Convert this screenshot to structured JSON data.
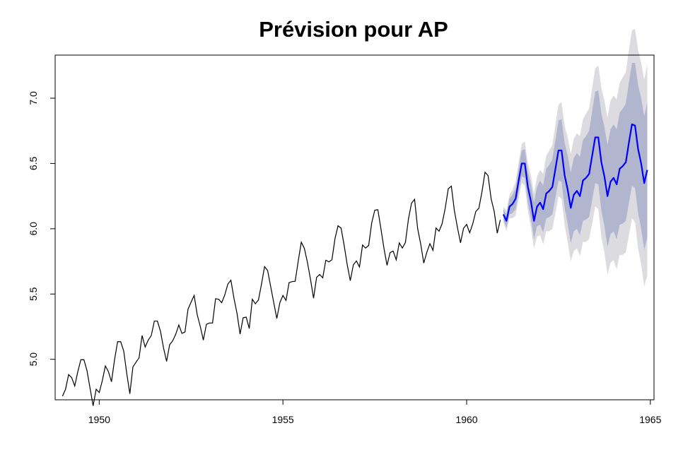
{
  "chart_data": {
    "type": "line",
    "title": "Prévision pour AP",
    "xlabel": "",
    "ylabel": "",
    "xlim": [
      1948.8,
      1965.1
    ],
    "ylim": [
      4.69,
      7.33
    ],
    "x_ticks": [
      1950,
      1955,
      1960,
      1965
    ],
    "x_tick_labels": [
      "1950",
      "1955",
      "1960",
      "1965"
    ],
    "y_ticks": [
      5.0,
      5.5,
      6.0,
      6.5,
      7.0
    ],
    "y_tick_labels": [
      "5.0",
      "5.5",
      "6.0",
      "6.5",
      "7.0"
    ],
    "grid": false,
    "legend": "none",
    "colors": {
      "history": "#000000",
      "forecast": "#0000ff",
      "band_80": "#b1b5ce",
      "band_95": "#dbdbe0"
    },
    "history": {
      "start": 1949.0,
      "frequency": 12,
      "values": [
        4.718,
        4.771,
        4.883,
        4.86,
        4.796,
        4.905,
        4.997,
        4.997,
        4.913,
        4.779,
        4.644,
        4.771,
        4.745,
        4.836,
        4.949,
        4.905,
        4.828,
        4.997,
        5.135,
        5.135,
        5.063,
        4.89,
        4.736,
        4.942,
        4.977,
        5.011,
        5.182,
        5.094,
        5.147,
        5.182,
        5.293,
        5.293,
        5.215,
        5.087,
        4.984,
        5.112,
        5.142,
        5.193,
        5.263,
        5.199,
        5.209,
        5.384,
        5.438,
        5.489,
        5.342,
        5.252,
        5.147,
        5.268,
        5.278,
        5.278,
        5.464,
        5.46,
        5.434,
        5.493,
        5.576,
        5.606,
        5.468,
        5.352,
        5.193,
        5.318,
        5.323,
        5.236,
        5.46,
        5.425,
        5.455,
        5.576,
        5.71,
        5.68,
        5.557,
        5.434,
        5.313,
        5.434,
        5.489,
        5.451,
        5.587,
        5.595,
        5.598,
        5.753,
        5.897,
        5.849,
        5.743,
        5.613,
        5.468,
        5.628,
        5.649,
        5.624,
        5.759,
        5.746,
        5.762,
        5.924,
        6.023,
        6.004,
        5.872,
        5.724,
        5.602,
        5.724,
        5.753,
        5.707,
        5.875,
        5.852,
        5.872,
        6.045,
        6.142,
        6.146,
        6.001,
        5.849,
        5.72,
        5.817,
        5.829,
        5.762,
        5.892,
        5.852,
        5.894,
        6.075,
        6.196,
        6.225,
        6.001,
        5.883,
        5.737,
        5.82,
        5.886,
        5.835,
        6.006,
        5.981,
        6.04,
        6.157,
        6.306,
        6.326,
        6.138,
        6.009,
        5.892,
        6.004,
        6.033,
        5.969,
        6.038,
        6.133,
        6.157,
        6.282,
        6.433,
        6.407,
        6.23,
        6.133,
        5.966,
        6.068
      ]
    },
    "forecast": {
      "start": 1961.0,
      "frequency": 12,
      "values": [
        6.11,
        6.06,
        6.17,
        6.19,
        6.23,
        6.37,
        6.5,
        6.5,
        6.32,
        6.21,
        6.06,
        6.17,
        6.2,
        6.15,
        6.27,
        6.29,
        6.32,
        6.46,
        6.6,
        6.6,
        6.41,
        6.3,
        6.16,
        6.26,
        6.29,
        6.25,
        6.37,
        6.39,
        6.42,
        6.56,
        6.7,
        6.7,
        6.51,
        6.4,
        6.25,
        6.36,
        6.39,
        6.34,
        6.46,
        6.48,
        6.51,
        6.66,
        6.8,
        6.79,
        6.61,
        6.5,
        6.35,
        6.45
      ],
      "lower_80": [
        6.07,
        6.01,
        6.11,
        6.12,
        6.15,
        6.28,
        6.4,
        6.39,
        6.2,
        6.08,
        5.92,
        6.02,
        6.03,
        5.97,
        6.08,
        6.09,
        6.11,
        6.24,
        6.37,
        6.36,
        6.16,
        6.04,
        5.89,
        5.98,
        6.0,
        5.95,
        6.06,
        6.07,
        6.09,
        6.22,
        6.35,
        6.34,
        6.14,
        6.02,
        5.86,
        5.96,
        5.98,
        5.92,
        6.03,
        6.04,
        6.06,
        6.2,
        6.33,
        6.31,
        6.12,
        6.0,
        5.84,
        5.93
      ],
      "upper_80": [
        6.15,
        6.11,
        6.23,
        6.26,
        6.31,
        6.46,
        6.6,
        6.61,
        6.44,
        6.34,
        6.2,
        6.32,
        6.37,
        6.33,
        6.46,
        6.49,
        6.53,
        6.68,
        6.83,
        6.84,
        6.66,
        6.56,
        6.43,
        6.54,
        6.58,
        6.55,
        6.68,
        6.71,
        6.75,
        6.9,
        7.05,
        7.06,
        6.88,
        6.78,
        6.64,
        6.76,
        6.8,
        6.76,
        6.89,
        6.92,
        6.96,
        7.12,
        7.27,
        7.27,
        7.1,
        7.0,
        6.86,
        6.97
      ],
      "lower_95": [
        6.05,
        5.98,
        6.08,
        6.08,
        6.1,
        6.23,
        6.35,
        6.33,
        6.14,
        6.01,
        5.85,
        5.94,
        5.95,
        5.88,
        5.98,
        5.98,
        6.0,
        6.12,
        6.25,
        6.23,
        6.03,
        5.9,
        5.75,
        5.83,
        5.85,
        5.79,
        5.9,
        5.9,
        5.92,
        6.04,
        6.17,
        6.15,
        5.94,
        5.82,
        5.65,
        5.74,
        5.76,
        5.69,
        5.8,
        5.8,
        5.82,
        5.95,
        6.08,
        6.05,
        5.85,
        5.73,
        5.56,
        5.64
      ],
      "upper_95": [
        6.17,
        6.14,
        6.26,
        6.3,
        6.36,
        6.51,
        6.65,
        6.67,
        6.5,
        6.41,
        6.27,
        6.4,
        6.45,
        6.42,
        6.56,
        6.6,
        6.64,
        6.8,
        6.95,
        6.97,
        6.79,
        6.7,
        6.57,
        6.69,
        6.73,
        6.71,
        6.84,
        6.88,
        6.92,
        7.08,
        7.23,
        7.25,
        7.08,
        6.98,
        6.85,
        6.98,
        7.02,
        6.99,
        7.12,
        7.16,
        7.2,
        7.37,
        7.52,
        7.53,
        7.37,
        7.27,
        7.14,
        7.26
      ]
    }
  }
}
